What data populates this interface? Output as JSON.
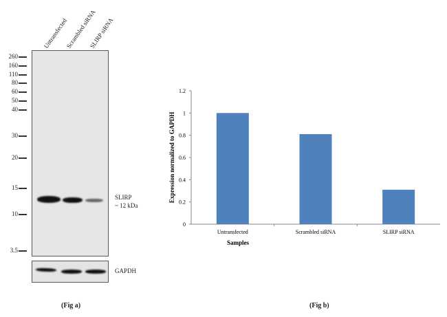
{
  "blot": {
    "lanes": [
      "Untransfected",
      "Scrambled siRNA",
      "SLIRP siRNA"
    ],
    "markers": [
      "260",
      "160",
      "110",
      "80",
      "60",
      "50",
      "40",
      "30",
      "20",
      "15",
      "10",
      "3.5"
    ],
    "target_label": "SLIRP",
    "target_size": "~ 12 kDa",
    "loading_label": "GAPDH",
    "band_intensity": [
      1.0,
      0.85,
      0.35
    ],
    "fig_label": "(Fig a)"
  },
  "fig_b_label": "(Fig b)",
  "chart_data": {
    "type": "bar",
    "categories": [
      "Untransfected",
      "Scrambled siRNA",
      "SLIRP siRNA"
    ],
    "values": [
      1.0,
      0.81,
      0.31
    ],
    "title": "",
    "xlabel": "Samples",
    "ylabel": "Expression  normalized to GAPDH",
    "ylim": [
      0,
      1.2
    ],
    "yticks": [
      "0",
      "0.2",
      "0.4",
      "0.6",
      "0.8",
      "1",
      "1.2"
    ],
    "bar_color": "#4f81bd",
    "grid": false,
    "legend": "none"
  }
}
